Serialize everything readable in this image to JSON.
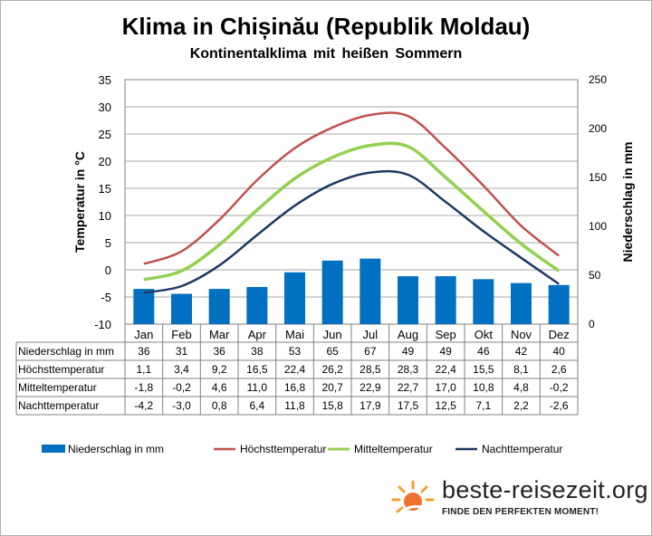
{
  "title": "Klima in Chișinău (Republik Moldau)",
  "subtitle": "Kontinentalklima mit heißen Sommern",
  "colors": {
    "precip": "#0070c0",
    "high": "#c0504d",
    "mean": "#92d050",
    "low": "#1f3864"
  },
  "chart_data": {
    "type": "bar",
    "categories": [
      "Jan",
      "Feb",
      "Mar",
      "Apr",
      "Mai",
      "Jun",
      "Jul",
      "Aug",
      "Sep",
      "Okt",
      "Nov",
      "Dez"
    ],
    "ylabel_left": "Temperatur in °C",
    "ylabel_right": "Niederschlag in mm",
    "ylim_left": [
      -10,
      35
    ],
    "ylim_right": [
      0,
      250
    ],
    "yticks_left": [
      "35",
      "30",
      "25",
      "20",
      "15",
      "10",
      "5",
      "0",
      "-5",
      "-10"
    ],
    "yticks_right": [
      "250",
      "200",
      "150",
      "100",
      "50",
      "0"
    ],
    "grid": "horizontal",
    "legend_position": "bottom",
    "series": [
      {
        "name": "Niederschlag in mm",
        "type": "bar",
        "axis": "right",
        "values": [
          36,
          31,
          36,
          38,
          53,
          65,
          67,
          49,
          49,
          46,
          42,
          40
        ],
        "labels": [
          "36",
          "31",
          "36",
          "38",
          "53",
          "65",
          "67",
          "49",
          "49",
          "46",
          "42",
          "40"
        ]
      },
      {
        "name": "Höchsttemperatur",
        "type": "line",
        "axis": "left",
        "values": [
          1.1,
          3.4,
          9.2,
          16.5,
          22.4,
          26.2,
          28.5,
          28.3,
          22.4,
          15.5,
          8.1,
          2.6
        ],
        "labels": [
          "1,1",
          "3,4",
          "9,2",
          "16,5",
          "22,4",
          "26,2",
          "28,5",
          "28,3",
          "22,4",
          "15,5",
          "8,1",
          "2,6"
        ]
      },
      {
        "name": "Mitteltemperatur",
        "type": "line",
        "axis": "left",
        "values": [
          -1.8,
          -0.2,
          4.6,
          11.0,
          16.8,
          20.7,
          22.9,
          22.7,
          17.0,
          10.8,
          4.8,
          -0.2
        ],
        "labels": [
          "-1,8",
          "-0,2",
          "4,6",
          "11,0",
          "16,8",
          "20,7",
          "22,9",
          "22,7",
          "17,0",
          "10,8",
          "4,8",
          "-0,2"
        ]
      },
      {
        "name": "Nachttemperatur",
        "type": "line",
        "axis": "left",
        "values": [
          -4.2,
          -3.0,
          0.8,
          6.4,
          11.8,
          15.8,
          17.9,
          17.5,
          12.5,
          7.1,
          2.2,
          -2.6
        ],
        "labels": [
          "-4,2",
          "-3,0",
          "0,8",
          "6,4",
          "11,8",
          "15,8",
          "17,9",
          "17,5",
          "12,5",
          "7,1",
          "2,2",
          "-2,6"
        ]
      }
    ]
  },
  "branding": {
    "name": "beste-reisezeit.org",
    "tagline": "FINDE DEN PERFEKTEN MOMENT!"
  }
}
